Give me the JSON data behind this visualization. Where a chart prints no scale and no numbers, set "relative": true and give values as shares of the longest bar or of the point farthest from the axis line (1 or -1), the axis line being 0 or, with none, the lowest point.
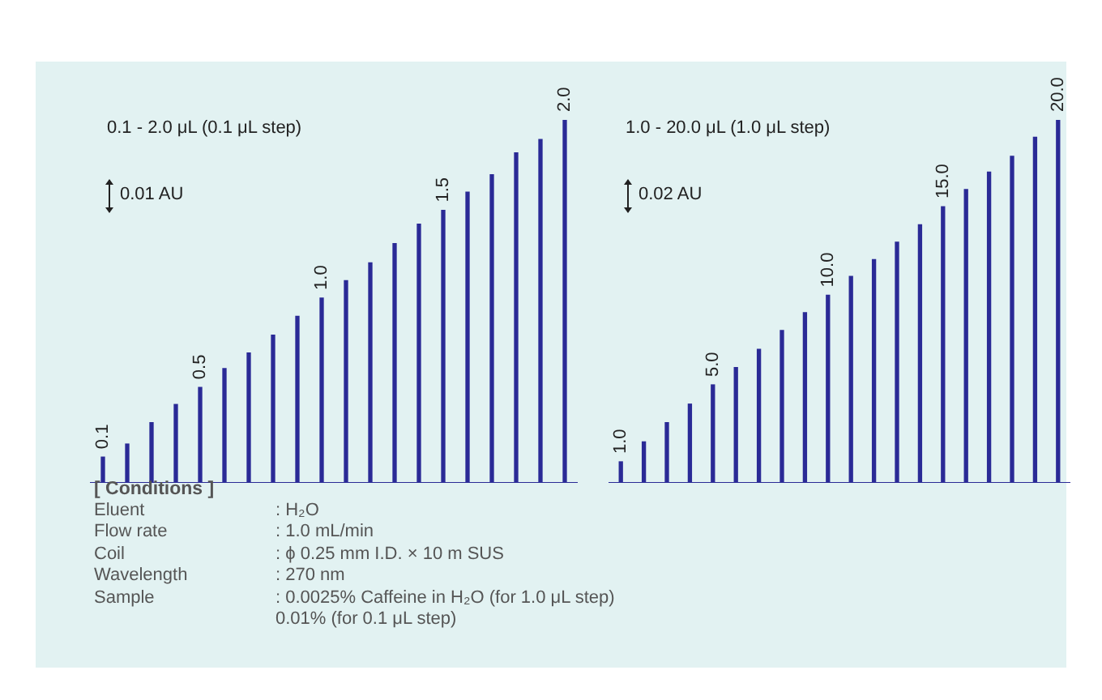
{
  "chart_data": [
    {
      "type": "bar",
      "relative": true,
      "title": "0.1 - 2.0 μL (0.1 μL step)",
      "annotations": [
        "0.01 AU"
      ],
      "color": "#2a2a96",
      "categories": [
        "0.1",
        null,
        null,
        null,
        "0.5",
        null,
        null,
        null,
        null,
        "1.0",
        null,
        null,
        null,
        null,
        "1.5",
        null,
        null,
        null,
        null,
        "2.0"
      ],
      "values": [
        0.071,
        0.107,
        0.166,
        0.216,
        0.263,
        0.315,
        0.358,
        0.407,
        0.459,
        0.509,
        0.557,
        0.606,
        0.659,
        0.713,
        0.751,
        0.801,
        0.849,
        0.909,
        0.946,
        1
      ]
    },
    {
      "type": "bar",
      "relative": true,
      "title": "1.0 - 20.0 μL (1.0 μL step)",
      "annotations": [
        "0.02 AU"
      ],
      "color": "#2a2a96",
      "categories": [
        "1.0",
        null,
        null,
        null,
        "5.0",
        null,
        null,
        null,
        null,
        "10.0",
        null,
        null,
        null,
        null,
        "15.0",
        null,
        null,
        null,
        null,
        "20.0"
      ],
      "values": [
        0.058,
        0.113,
        0.166,
        0.217,
        0.27,
        0.318,
        0.368,
        0.42,
        0.469,
        0.517,
        0.569,
        0.615,
        0.663,
        0.711,
        0.761,
        0.808,
        0.856,
        0.9,
        0.952,
        1
      ]
    },
    {
      "type": "other",
      "title": "[ Conditions ]",
      "annotations": [
        "Eluent\t: H₂O",
        "Flow rate\t: 1.0 mL/min",
        "Coil\t: ϕ 0.25 mm I.D.  × 10 m SUS",
        "Wavelength\t: 270 nm",
        "Sample\t: 0.0025% Caffeine in H₂O (for 1.0 μL step)",
        "\t0.01% (for 0.1 μL step)"
      ]
    }
  ]
}
